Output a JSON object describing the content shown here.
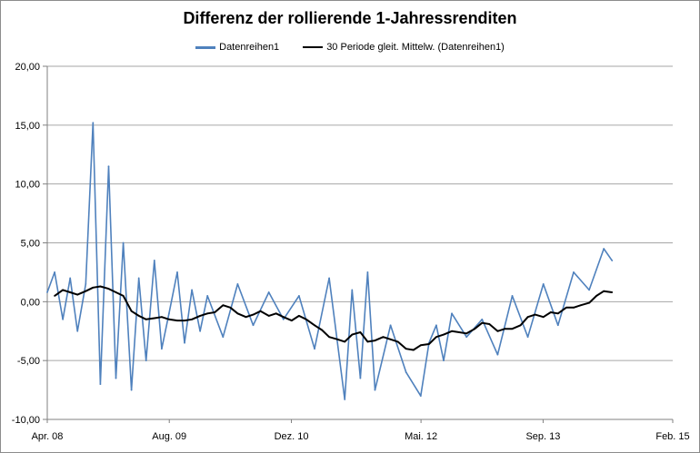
{
  "chart_data": {
    "type": "line",
    "title": "Differenz der rollierende 1-Jahressrenditen",
    "xlabel": "",
    "ylabel": "",
    "ylim": [
      -10,
      20
    ],
    "y_ticks": [
      -10,
      -5,
      0,
      5,
      10,
      15,
      20
    ],
    "y_tick_labels": [
      "-10,00",
      "-5,00",
      "0,00",
      "5,00",
      "10,00",
      "15,00",
      "20,00"
    ],
    "x_range": [
      2008.25,
      2015.083
    ],
    "x_ticks": [
      2008.25,
      2009.583,
      2010.917,
      2012.333,
      2013.667,
      2015.083
    ],
    "x_tick_labels": [
      "Apr. 08",
      "Aug. 09",
      "Dez. 10",
      "Mai. 12",
      "Sep. 13",
      "Feb. 15"
    ],
    "grid": true,
    "legend_position": "top",
    "colors": {
      "series": "#4f81bd",
      "moving_average": "#000000",
      "grid": "#a6a6a6"
    },
    "series": [
      {
        "name": "Datenreihen1",
        "x": [
          2008.25,
          2008.33,
          2008.42,
          2008.5,
          2008.58,
          2008.67,
          2008.75,
          2008.83,
          2008.92,
          2009.0,
          2009.08,
          2009.17,
          2009.25,
          2009.33,
          2009.42,
          2009.5,
          2009.58,
          2009.67,
          2009.75,
          2009.83,
          2009.92,
          2010.0,
          2010.17,
          2010.33,
          2010.5,
          2010.67,
          2010.83,
          2011.0,
          2011.17,
          2011.33,
          2011.5,
          2011.58,
          2011.67,
          2011.75,
          2011.83,
          2012.0,
          2012.17,
          2012.33,
          2012.42,
          2012.5,
          2012.58,
          2012.67,
          2012.83,
          2013.0,
          2013.17,
          2013.33,
          2013.5,
          2013.67,
          2013.83,
          2014.0,
          2014.17,
          2014.33,
          2014.42
        ],
        "values": [
          0.8,
          2.5,
          -1.5,
          2.0,
          -2.5,
          1.5,
          15.2,
          -7.0,
          11.5,
          -6.5,
          5.0,
          -7.5,
          2.0,
          -5.0,
          3.5,
          -4.0,
          -1.0,
          2.5,
          -3.5,
          1.0,
          -2.5,
          0.5,
          -3.0,
          1.5,
          -2.0,
          0.8,
          -1.5,
          0.5,
          -4.0,
          2.0,
          -8.3,
          1.0,
          -6.5,
          2.5,
          -7.5,
          -2.0,
          -6.0,
          -8.0,
          -3.5,
          -2.0,
          -5.0,
          -1.0,
          -3.0,
          -1.5,
          -4.5,
          0.5,
          -3.0,
          1.5,
          -2.0,
          2.5,
          1.0,
          4.5,
          3.5
        ]
      },
      {
        "name": "30 Periode gleit. Mittelw. (Datenreihen1)",
        "x": [
          2008.33,
          2008.42,
          2008.5,
          2008.58,
          2008.67,
          2008.75,
          2008.83,
          2008.92,
          2009.0,
          2009.08,
          2009.17,
          2009.25,
          2009.33,
          2009.42,
          2009.5,
          2009.58,
          2009.67,
          2009.75,
          2009.83,
          2009.92,
          2010.0,
          2010.08,
          2010.17,
          2010.25,
          2010.33,
          2010.42,
          2010.5,
          2010.58,
          2010.67,
          2010.75,
          2010.83,
          2010.92,
          2011.0,
          2011.08,
          2011.17,
          2011.25,
          2011.33,
          2011.42,
          2011.5,
          2011.58,
          2011.67,
          2011.75,
          2011.83,
          2011.92,
          2012.0,
          2012.08,
          2012.17,
          2012.25,
          2012.33,
          2012.42,
          2012.5,
          2012.58,
          2012.67,
          2012.75,
          2012.83,
          2012.92,
          2013.0,
          2013.08,
          2013.17,
          2013.25,
          2013.33,
          2013.42,
          2013.5,
          2013.58,
          2013.67,
          2013.75,
          2013.83,
          2013.92,
          2014.0,
          2014.08,
          2014.17,
          2014.25,
          2014.33,
          2014.42
        ],
        "values": [
          0.5,
          1.0,
          0.8,
          0.6,
          0.9,
          1.2,
          1.3,
          1.1,
          0.8,
          0.5,
          -0.8,
          -1.2,
          -1.5,
          -1.4,
          -1.3,
          -1.5,
          -1.6,
          -1.6,
          -1.5,
          -1.2,
          -1.0,
          -0.9,
          -0.3,
          -0.5,
          -1.0,
          -1.3,
          -1.1,
          -0.8,
          -1.2,
          -1.0,
          -1.3,
          -1.6,
          -1.2,
          -1.5,
          -2.0,
          -2.4,
          -3.0,
          -3.2,
          -3.4,
          -2.8,
          -2.6,
          -3.4,
          -3.3,
          -3.0,
          -3.2,
          -3.4,
          -4.0,
          -4.1,
          -3.7,
          -3.6,
          -3.0,
          -2.8,
          -2.5,
          -2.6,
          -2.7,
          -2.3,
          -1.8,
          -1.9,
          -2.5,
          -2.3,
          -2.3,
          -2.0,
          -1.3,
          -1.1,
          -1.3,
          -0.9,
          -1.0,
          -0.5,
          -0.5,
          -0.3,
          -0.1,
          0.5,
          0.9,
          0.8
        ]
      }
    ]
  }
}
